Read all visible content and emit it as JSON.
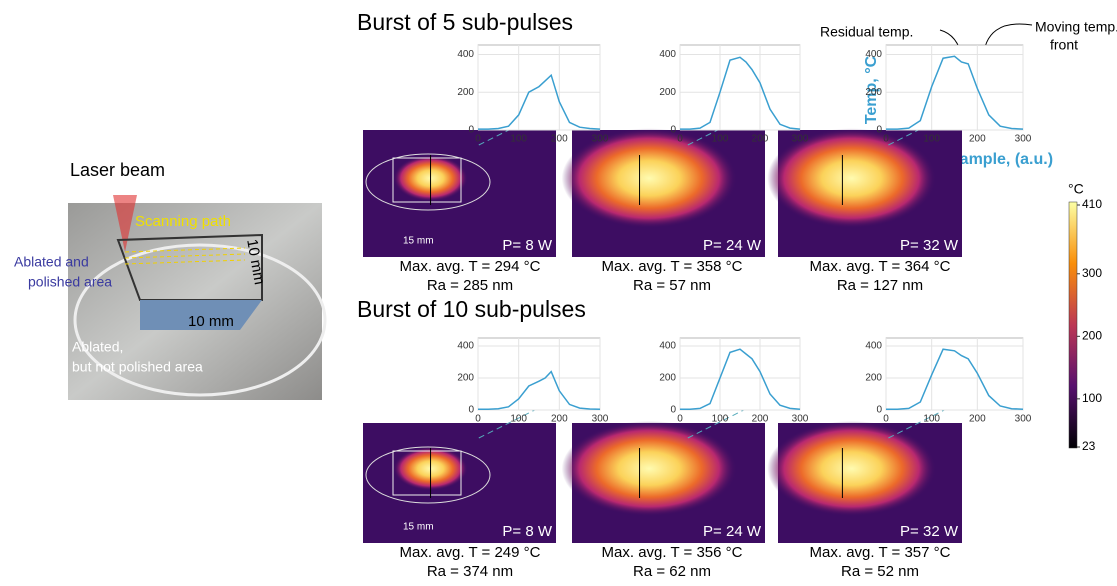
{
  "figure": {
    "panels": [
      {
        "title": "Burst of 5 sub-pulses",
        "images": [
          {
            "power": "P= 8 W",
            "max_temp": "Max. avg. T = 294 °C",
            "roughness": "Ra = 285 nm"
          },
          {
            "power": "P= 24 W",
            "max_temp": "Max. avg. T = 358 °C",
            "roughness": "Ra = 57 nm"
          },
          {
            "power": "P= 32 W",
            "max_temp": "Max. avg. T = 364 °C",
            "roughness": "Ra = 127 nm"
          }
        ]
      },
      {
        "title": "Burst of 10 sub-pulses",
        "images": [
          {
            "power": "P= 8 W",
            "max_temp": "Max. avg. T = 249 °C",
            "roughness": "Ra = 374 nm"
          },
          {
            "power": "P= 24 W",
            "max_temp": "Max. avg. T = 356 °C",
            "roughness": "Ra = 62 nm"
          },
          {
            "power": "P= 32 W",
            "max_temp": "Max. avg. T = 357 °C",
            "roughness": "Ra = 52 nm"
          }
        ]
      }
    ],
    "scale_label": "15 mm"
  },
  "photo": {
    "laser": "Laser beam",
    "scan": "Scanning path",
    "side": "10 mm",
    "bottom": "10 mm",
    "polished": [
      "Ablated and",
      "polished area"
    ],
    "unpolished": [
      "Ablated,",
      "but not polished area"
    ]
  },
  "annotations": {
    "residual": "Residual temp.",
    "moving": [
      "Moving temp.",
      "front"
    ],
    "y_label": "Temp, °C",
    "x_label": "Profile of sample, (a.u.)"
  },
  "colorbar": {
    "unit": "°C",
    "range": [
      23,
      410
    ],
    "ticks": [
      410,
      300,
      200,
      100,
      23
    ]
  },
  "chart_data": [
    {
      "type": "line",
      "x": [
        0,
        25,
        50,
        75,
        100,
        125,
        150,
        165,
        180,
        200,
        225,
        250,
        275,
        300
      ],
      "series": [
        {
          "color": "#3a9fd0",
          "values": [
            5,
            5,
            8,
            20,
            80,
            200,
            230,
            260,
            290,
            150,
            40,
            15,
            8,
            5
          ]
        }
      ],
      "xlim": [
        0,
        300
      ],
      "ylim": [
        0,
        450
      ],
      "xticks": [
        0,
        100,
        200,
        300
      ],
      "yticks": [
        0,
        200,
        400
      ],
      "grid": true
    },
    {
      "type": "line",
      "x": [
        0,
        25,
        50,
        75,
        100,
        125,
        150,
        165,
        180,
        200,
        225,
        250,
        275,
        300
      ],
      "series": [
        {
          "color": "#3a9fd0",
          "values": [
            5,
            5,
            10,
            40,
            200,
            370,
            385,
            360,
            320,
            250,
            110,
            30,
            10,
            5
          ]
        }
      ],
      "xlim": [
        0,
        300
      ],
      "ylim": [
        0,
        450
      ],
      "xticks": [
        0,
        100,
        200,
        300
      ],
      "yticks": [
        0,
        200,
        400
      ],
      "grid": true
    },
    {
      "type": "line",
      "x": [
        0,
        25,
        50,
        75,
        100,
        125,
        150,
        165,
        180,
        200,
        225,
        250,
        275,
        300
      ],
      "series": [
        {
          "color": "#3a9fd0",
          "values": [
            5,
            5,
            10,
            50,
            230,
            380,
            390,
            360,
            350,
            220,
            80,
            20,
            8,
            5
          ]
        }
      ],
      "xlim": [
        0,
        300
      ],
      "ylim": [
        0,
        450
      ],
      "xticks": [
        0,
        100,
        200,
        300
      ],
      "yticks": [
        0,
        200,
        400
      ],
      "grid": true
    },
    {
      "type": "line",
      "x": [
        0,
        25,
        50,
        75,
        100,
        125,
        150,
        165,
        180,
        200,
        225,
        250,
        275,
        300
      ],
      "series": [
        {
          "color": "#3a9fd0",
          "values": [
            5,
            5,
            8,
            20,
            70,
            150,
            180,
            200,
            240,
            120,
            35,
            12,
            6,
            5
          ]
        }
      ],
      "xlim": [
        0,
        300
      ],
      "ylim": [
        0,
        450
      ],
      "xticks": [
        0,
        100,
        200,
        300
      ],
      "yticks": [
        0,
        200,
        400
      ],
      "grid": true
    },
    {
      "type": "line",
      "x": [
        0,
        25,
        50,
        75,
        100,
        125,
        150,
        165,
        180,
        200,
        225,
        250,
        275,
        300
      ],
      "series": [
        {
          "color": "#3a9fd0",
          "values": [
            5,
            5,
            10,
            40,
            200,
            360,
            380,
            350,
            320,
            240,
            100,
            30,
            10,
            5
          ]
        }
      ],
      "xlim": [
        0,
        300
      ],
      "ylim": [
        0,
        450
      ],
      "xticks": [
        0,
        100,
        200,
        300
      ],
      "yticks": [
        0,
        200,
        400
      ],
      "grid": true
    },
    {
      "type": "line",
      "x": [
        0,
        25,
        50,
        75,
        100,
        125,
        150,
        165,
        180,
        200,
        225,
        250,
        275,
        300
      ],
      "series": [
        {
          "color": "#3a9fd0",
          "values": [
            5,
            5,
            10,
            50,
            220,
            380,
            370,
            340,
            320,
            230,
            90,
            25,
            8,
            5
          ]
        }
      ],
      "xlim": [
        0,
        300
      ],
      "ylim": [
        0,
        450
      ],
      "xticks": [
        0,
        100,
        200,
        300
      ],
      "yticks": [
        0,
        200,
        400
      ],
      "grid": true
    }
  ]
}
